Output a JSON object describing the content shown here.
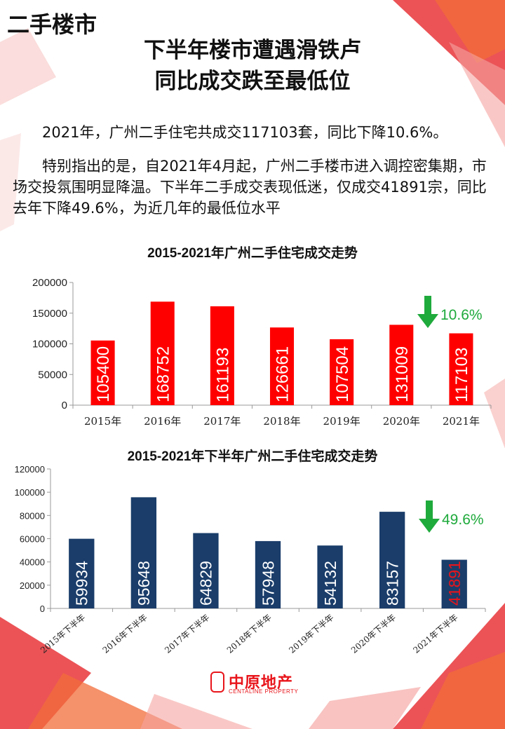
{
  "header_tag": "二手楼市",
  "title_lines": [
    "下半年楼市遭遇滑铁卢",
    "同比成交跌至最低位"
  ],
  "paragraphs": [
    "2021年，广州二手住宅共成交117103套，同比下降10.6%。",
    "特别指出的是，自2021年4月起，广州二手楼市进入调控密集期，市场交投氛围明显降温。下半年二手成交表现低迷，仅成交41891宗，同比去年下降49.6%，为近几年的最低位水平"
  ],
  "chart_data": [
    {
      "type": "bar",
      "title": "2015-2021年广州二手住宅成交走势",
      "categories": [
        "2015年",
        "2016年",
        "2017年",
        "2018年",
        "2019年",
        "2020年",
        "2021年"
      ],
      "values": [
        105400,
        168752,
        161193,
        126661,
        107504,
        131009,
        117103
      ],
      "ylim": [
        0,
        200000
      ],
      "yticks": [
        0,
        50000,
        100000,
        150000,
        200000
      ],
      "bar_color": "#ff0000",
      "label_color": "#ffffff",
      "annotation": {
        "arrow": "down",
        "text": "10.6%",
        "color": "#1faa3c"
      },
      "grid": false,
      "legend": "none"
    },
    {
      "type": "bar",
      "title": "2015-2021年下半年广州二手住宅成交走势",
      "categories": [
        "2015年下半年",
        "2016年下半年",
        "2017年下半年",
        "2018年下半年",
        "2019年下半年",
        "2020年下半年",
        "2021年下半年"
      ],
      "values": [
        59934,
        95648,
        64829,
        57948,
        54132,
        83157,
        41891
      ],
      "ylim": [
        0,
        120000
      ],
      "yticks": [
        0,
        20000,
        40000,
        60000,
        80000,
        100000,
        120000
      ],
      "bar_color": "#1a3d6a",
      "label_color": "#ffffff",
      "last_label_color": "#e8151b",
      "annotation": {
        "arrow": "down",
        "text": "49.6%",
        "color": "#1faa3c"
      },
      "grid": false,
      "legend": "none"
    }
  ],
  "logo": {
    "name": "中原地产",
    "sub": "CENTALINE PROPERTY"
  }
}
